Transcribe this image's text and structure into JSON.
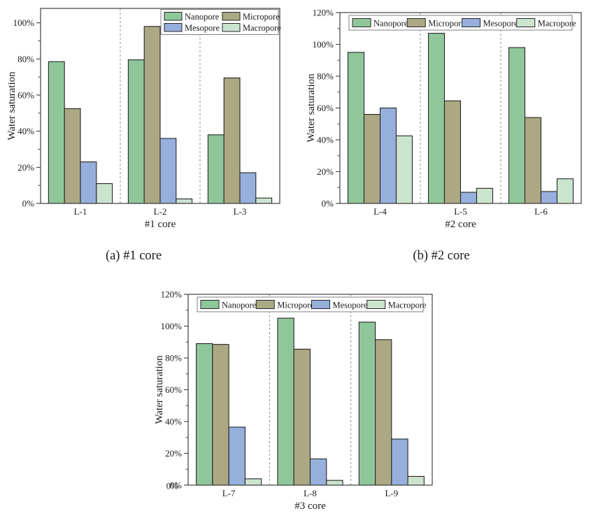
{
  "figure": {
    "background": "#ffffff",
    "text_color": "#1a1a1a"
  },
  "colors": {
    "Nanopore": "#8FC79B",
    "Micropore": "#ACA883",
    "Mesopore": "#97AFDC",
    "Macropore": "#CBE4CE",
    "bar_edge": "#262626",
    "axis": "#404040",
    "separator": "#909090",
    "legend_edge": "#7f7f7f",
    "legend_fill": "#ffffff"
  },
  "captions": {
    "a": "(a) #1 core",
    "b": "(b) #2 core"
  },
  "chart_data": [
    {
      "id": "chart-1-core",
      "type": "bar",
      "title": "",
      "xlabel": "#1 core",
      "ylabel": "Water saturation",
      "ylim": [
        0,
        108
      ],
      "ytick_step": 20,
      "minor_step": 10,
      "ytick_labels": [
        "0%",
        "20%",
        "40%",
        "60%",
        "80%",
        "100%"
      ],
      "grid": false,
      "group_separators": true,
      "categories": [
        "L-1",
        "L-2",
        "L-3"
      ],
      "series": [
        {
          "name": "Nanopore",
          "values": [
            78.5,
            79.5,
            38
          ]
        },
        {
          "name": "Micropore",
          "values": [
            52.5,
            98,
            69.5
          ]
        },
        {
          "name": "Mesopore",
          "values": [
            23,
            36,
            17
          ]
        },
        {
          "name": "Macropore",
          "values": [
            11,
            2.5,
            3
          ]
        }
      ],
      "legend": {
        "layout": "grid",
        "position": "top-right",
        "entries": [
          "Nanopore",
          "Micropore",
          "Mesopore",
          "Macropore"
        ]
      }
    },
    {
      "id": "chart-2-core",
      "type": "bar",
      "title": "",
      "xlabel": "#2 core",
      "ylabel": "Water saturation",
      "ylim": [
        0,
        120
      ],
      "ytick_step": 20,
      "minor_step": 10,
      "ytick_labels": [
        "0%",
        "20%",
        "40%",
        "60%",
        "80%",
        "100%",
        "120%"
      ],
      "grid": false,
      "group_separators": true,
      "categories": [
        "L-4",
        "L-5",
        "L-6"
      ],
      "series": [
        {
          "name": "Nanopore",
          "values": [
            95,
            107,
            98
          ]
        },
        {
          "name": "Micropore",
          "values": [
            56,
            64.5,
            54
          ]
        },
        {
          "name": "Mesopore",
          "values": [
            60,
            7,
            7.5
          ]
        },
        {
          "name": "Macropore",
          "values": [
            42.5,
            9.5,
            15.5
          ]
        }
      ],
      "legend": {
        "layout": "row",
        "position": "top",
        "entries": [
          "Nanopore",
          "Micropore",
          "Mesopore",
          "Macropore"
        ]
      }
    },
    {
      "id": "chart-3-core",
      "type": "bar",
      "title": "",
      "xlabel": "#3 core",
      "ylabel": "Water saturation",
      "ylim": [
        0,
        120
      ],
      "ytick_step": 20,
      "minor_step": 10,
      "ytick_labels": [
        "0%",
        "20%",
        "40%",
        "60%",
        "80%",
        "100%",
        "120%"
      ],
      "zero_label_double_printed": true,
      "grid": false,
      "group_separators": true,
      "categories": [
        "L-7",
        "L-8",
        "L-9"
      ],
      "series": [
        {
          "name": "Nanopore",
          "values": [
            89,
            105,
            102.5
          ]
        },
        {
          "name": "Micropore",
          "values": [
            88.5,
            85.5,
            91.5
          ]
        },
        {
          "name": "Mesopore",
          "values": [
            36.5,
            16.5,
            29
          ]
        },
        {
          "name": "Macropore",
          "values": [
            4,
            3,
            5.5
          ]
        }
      ],
      "legend": {
        "layout": "row",
        "position": "top",
        "entries": [
          "Nanopore",
          "Micropore",
          "Mesopore",
          "Macropore"
        ]
      }
    }
  ]
}
